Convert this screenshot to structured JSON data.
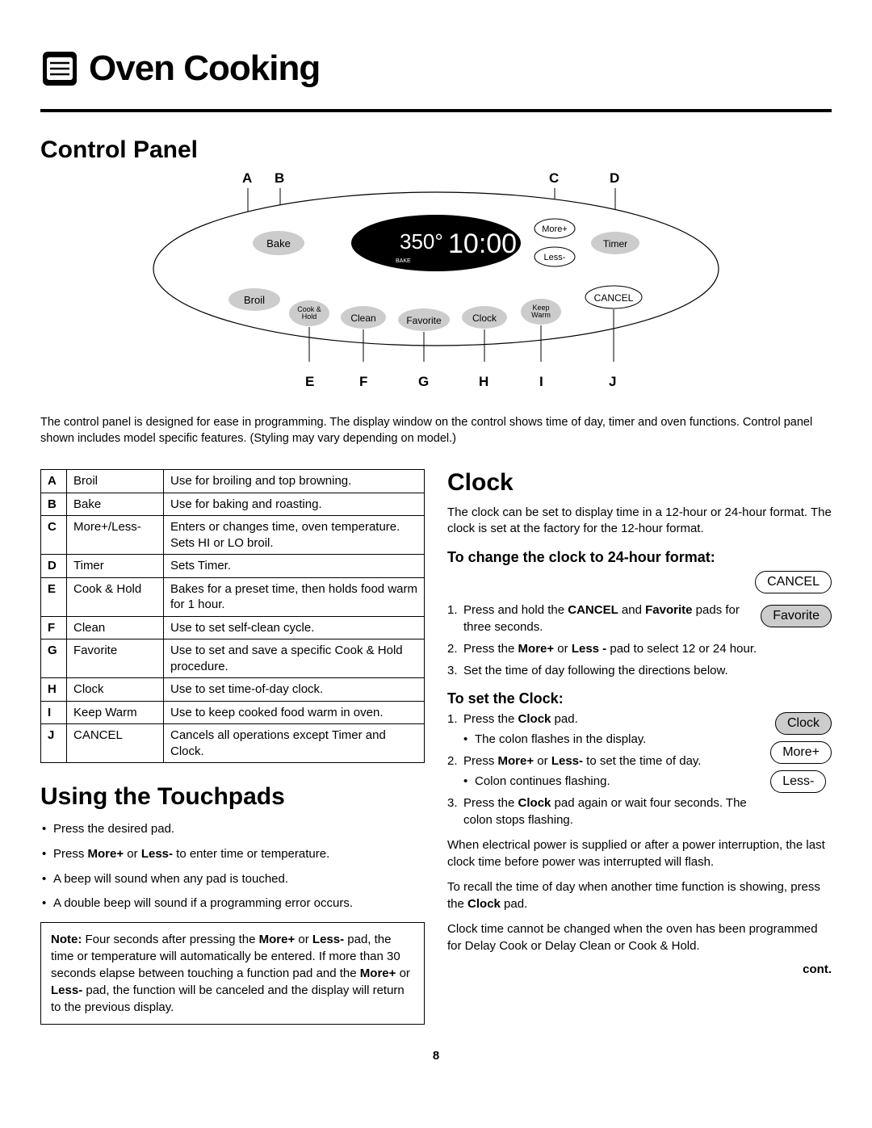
{
  "header": {
    "title": "Oven Cooking"
  },
  "section1": {
    "title": "Control Panel"
  },
  "diagram": {
    "top_labels": [
      "A",
      "B",
      "C",
      "D"
    ],
    "bot_labels": [
      "E",
      "F",
      "G",
      "H",
      "I",
      "J"
    ],
    "display_temp": "350°",
    "display_time": "10:00",
    "display_mode": "BAKE",
    "btn_bake": "Bake",
    "btn_broil": "Broil",
    "btn_cookhold": "Cook &\nHold",
    "btn_clean": "Clean",
    "btn_favorite": "Favorite",
    "btn_clock": "Clock",
    "btn_keepwarm": "Keep\nWarm",
    "btn_more": "More+",
    "btn_less": "Less-",
    "btn_timer": "Timer",
    "btn_cancel": "CANCEL"
  },
  "panel_note": "The control panel is designed for ease in programming. The display window on the control shows time of day, timer and oven functions. Control panel shown includes model specific features. (Styling may vary depending on model.)",
  "features": [
    {
      "k": "A",
      "n": "Broil",
      "d": "Use for broiling and top browning."
    },
    {
      "k": "B",
      "n": "Bake",
      "d": "Use for baking and roasting."
    },
    {
      "k": "C",
      "n": "More+/Less-",
      "d": "Enters or changes time, oven temperature.  Sets HI or LO broil."
    },
    {
      "k": "D",
      "n": "Timer",
      "d": "Sets Timer."
    },
    {
      "k": "E",
      "n": "Cook & Hold",
      "d": "Bakes for a preset time, then holds food warm for 1 hour."
    },
    {
      "k": "F",
      "n": "Clean",
      "d": "Use to set self-clean cycle."
    },
    {
      "k": "G",
      "n": "Favorite",
      "d": "Use to set and save a specific Cook & Hold procedure."
    },
    {
      "k": "H",
      "n": "Clock",
      "d": "Use to set time-of-day clock."
    },
    {
      "k": "I",
      "n": "Keep Warm",
      "d": "Use to keep cooked food warm in oven."
    },
    {
      "k": "J",
      "n": "CANCEL",
      "d": "Cancels all operations except Timer and Clock."
    }
  ],
  "section2": {
    "title": "Using the Touchpads"
  },
  "touchpad_bullets": [
    "Press the desired pad.",
    "Press <b>More+</b> or <b>Less-</b> to enter time or temperature.",
    "A beep will sound when any pad is touched.",
    "A double beep will sound if a programming error occurs."
  ],
  "note": "<b>Note:</b>  Four seconds after pressing the <b>More+</b> or <b>Less-</b> pad, the time or temperature will automatically be entered. If more than 30 seconds elapse between touching a function pad and the <b>More+</b> or <b>Less-</b> pad, the function will be canceled and the display will return to the previous display.",
  "section3": {
    "title": "Clock"
  },
  "clock_intro": "The clock can be set to display time in a 12-hour or 24-hour format.  The clock is set at the factory for the 12-hour format.",
  "sub24": "To change the clock to 24-hour format:",
  "steps24": [
    "Press and hold the <b>CANCEL</b> and <b>Favorite</b> pads for three seconds.",
    "Press the <b>More+</b> or <b>Less -</b> pad to select 12 or 24 hour.",
    "Set the time of day following the directions below."
  ],
  "subset": "To set the Clock:",
  "stepsSet": [
    {
      "t": "Press the <b>Clock</b> pad.",
      "s": [
        "The colon flashes in the display."
      ]
    },
    {
      "t": "Press <b>More+</b> or <b>Less-</b> to set the time of day.",
      "s": [
        "Colon continues flashing."
      ]
    },
    {
      "t": "Press the <b>Clock</b> pad again or wait four seconds. The colon stops flashing.",
      "s": []
    }
  ],
  "para1": "When electrical power is supplied or after a power interruption, the last clock time before power was interrupted will flash.",
  "para2": "To recall the time of day when another time function is showing, press the <b>Clock</b> pad.",
  "para3": "Clock time cannot be changed when the oven has been programmed for Delay Cook or Delay Clean or Cook & Hold.",
  "pills": {
    "cancel": "CANCEL",
    "favorite": "Favorite",
    "clock": "Clock",
    "more": "More+",
    "less": "Less-"
  },
  "cont": "cont.",
  "page": "8"
}
